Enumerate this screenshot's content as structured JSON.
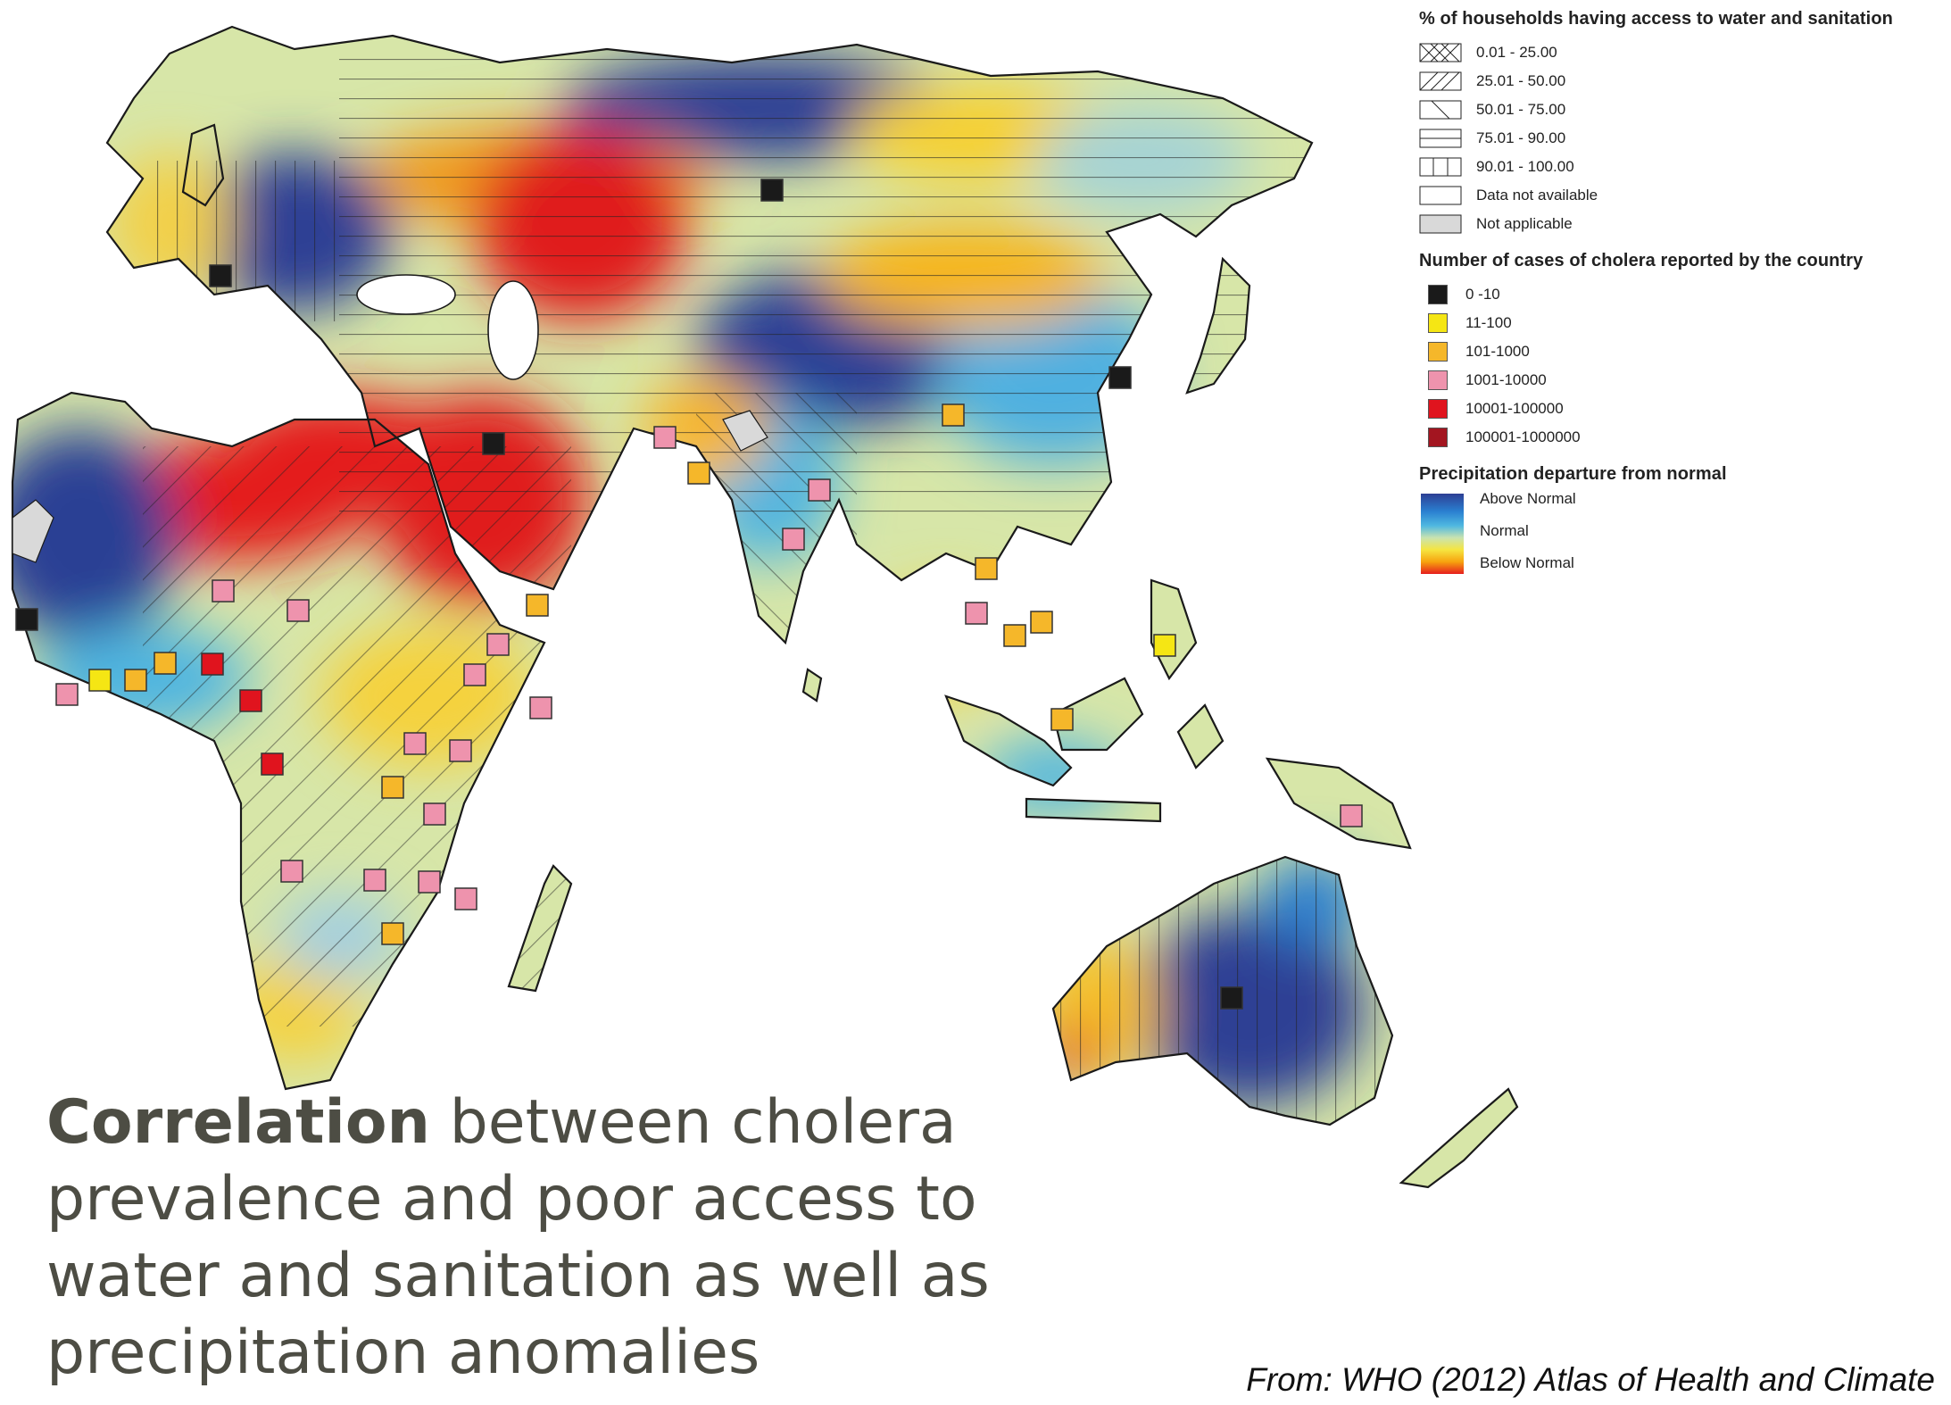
{
  "map": {
    "title": "",
    "colors": {
      "above_normal": "#2d3f94",
      "wet": "#4fb8e0",
      "normal": "#c9e3b0",
      "dry": "#f6e540",
      "drier": "#f7a20e",
      "below_normal": "#e61e1e",
      "ocean": "#ffffff",
      "not_applicable": "#d9d9d9"
    }
  },
  "legend": {
    "water_title": "% of households having access to water and sanitation",
    "water_items": [
      {
        "label": "0.01 - 25.00",
        "pattern": "crosshatch"
      },
      {
        "label": "25.01 - 50.00",
        "pattern": "dense-diagonal"
      },
      {
        "label": "50.01 - 75.00",
        "pattern": "sparse-diagonal"
      },
      {
        "label": "75.01 - 90.00",
        "pattern": "horizontal"
      },
      {
        "label": "90.01 - 100.00",
        "pattern": "vertical"
      },
      {
        "label": "Data not available",
        "pattern": "blank"
      },
      {
        "label": "Not applicable",
        "pattern": "grey"
      }
    ],
    "cholera_title": "Number of cases of cholera reported by the country",
    "cholera_items": [
      {
        "label": "0 -10",
        "color": "#1a1a1a"
      },
      {
        "label": "11-100",
        "color": "#f5e614"
      },
      {
        "label": "101-1000",
        "color": "#f5b72a"
      },
      {
        "label": "1001-10000",
        "color": "#ee93ad"
      },
      {
        "label": "10001-100000",
        "color": "#e0141e"
      },
      {
        "label": "100001-1000000",
        "color": "#a31520"
      }
    ],
    "precip_title": "Precipitation departure from normal",
    "precip_items": [
      "Above Normal",
      "Normal",
      "Below Normal"
    ]
  },
  "caption": {
    "bold": "Correlation",
    "rest": " between cholera prevalence and poor access to water and sanitation as well as precipitation anomalies"
  },
  "source": "From: WHO (2012) Atlas of Health and Climate"
}
